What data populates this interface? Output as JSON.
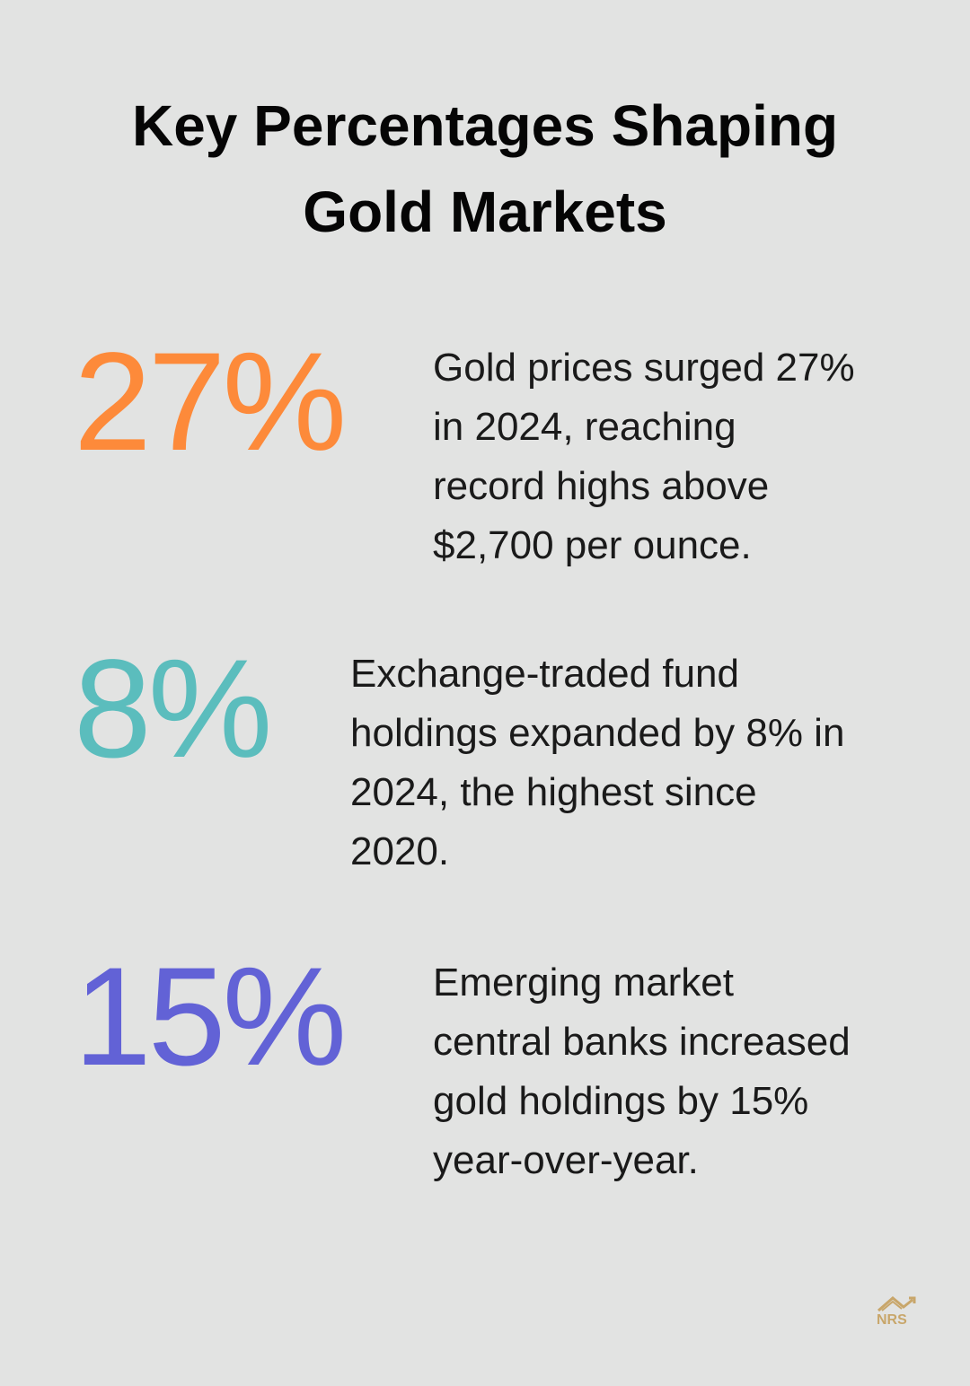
{
  "header": {
    "title_lines": [
      "Key Percentages Shaping",
      "Gold Markets"
    ]
  },
  "stats": [
    {
      "figure": "27%",
      "color": "#fd8a3a",
      "lines": [
        "Gold prices surged 27%",
        "in 2024, reaching",
        "record highs above",
        "$2,700 per ounce."
      ]
    },
    {
      "figure": "8%",
      "color": "#5bbdbd",
      "lines": [
        "Exchange-traded fund",
        "holdings expanded by 8% in",
        "2024, the highest since",
        "2020."
      ]
    },
    {
      "figure": "15%",
      "color": "#6262d6",
      "lines": [
        "Emerging market",
        "central banks increased",
        "gold holdings by 15%",
        "year-over-year."
      ]
    }
  ],
  "logo": {
    "text": "NRS"
  }
}
